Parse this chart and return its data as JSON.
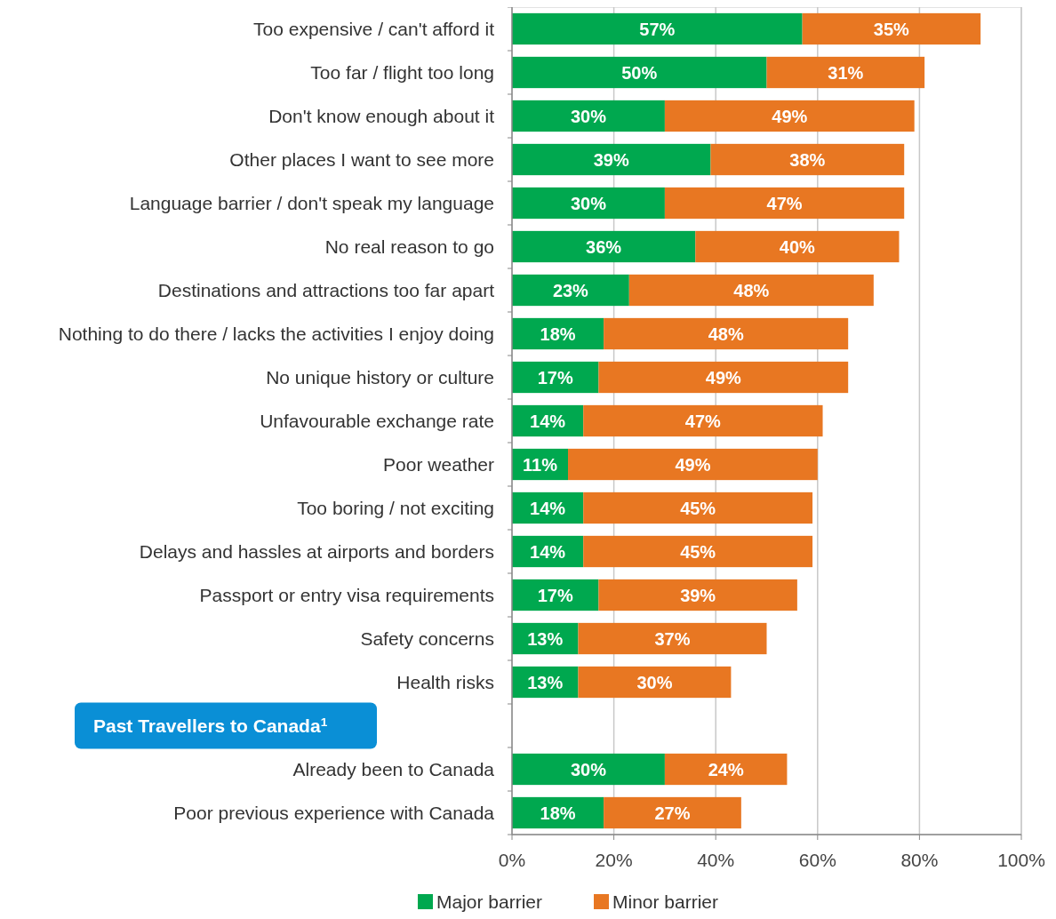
{
  "chart_data": {
    "type": "bar",
    "orientation": "horizontal",
    "stacked": true,
    "categories": [
      "Too expensive / can't afford it",
      "Too far / flight too long",
      "Don't know enough about it",
      "Other places I want to see more",
      "Language barrier / don't speak my language",
      "No real reason to go",
      "Destinations and attractions too far apart",
      "Nothing to do there / lacks the activities I enjoy doing",
      "No unique history or culture",
      "Unfavourable exchange rate",
      "Poor weather",
      "Too boring / not exciting",
      "Delays and hassles at airports and borders",
      "Passport or entry visa requirements",
      "Safety concerns",
      "Health risks",
      null,
      "Already been to Canada",
      "Poor previous experience with Canada"
    ],
    "series": [
      {
        "name": "Major barrier",
        "color": "#00a84f",
        "values": [
          57,
          50,
          30,
          39,
          30,
          36,
          23,
          18,
          17,
          14,
          11,
          14,
          14,
          17,
          13,
          13,
          null,
          30,
          18
        ],
        "value_labels": [
          "57%",
          "50%",
          "30%",
          "39%",
          "30%",
          "36%",
          "23%",
          "18%",
          "17%",
          "14%",
          "11%",
          "14%",
          "14%",
          "17%",
          "13%",
          "13%",
          null,
          "30%",
          "18%"
        ]
      },
      {
        "name": "Minor barrier",
        "color": "#e87722",
        "values": [
          35,
          31,
          49,
          38,
          47,
          40,
          48,
          48,
          49,
          47,
          49,
          45,
          45,
          39,
          37,
          30,
          null,
          24,
          27
        ],
        "value_labels": [
          "35%",
          "31%",
          "49%",
          "38%",
          "47%",
          "40%",
          "48%",
          "48%",
          "49%",
          "47%",
          "49%",
          "45%",
          "45%",
          "39%",
          "37%",
          "30%",
          null,
          "24%",
          "27%"
        ]
      }
    ],
    "xlim": [
      0,
      100
    ],
    "xticks": [
      {
        "value": 0,
        "label": "0%"
      },
      {
        "value": 20,
        "label": "20%"
      },
      {
        "value": 40,
        "label": "40%"
      },
      {
        "value": 60,
        "label": "60%"
      },
      {
        "value": 80,
        "label": "80%"
      },
      {
        "value": 100,
        "label": "100%"
      }
    ],
    "grid": "x",
    "legend": "bottom",
    "annotations": [
      "Past Travellers to Canada$^{1}$"
    ]
  }
}
